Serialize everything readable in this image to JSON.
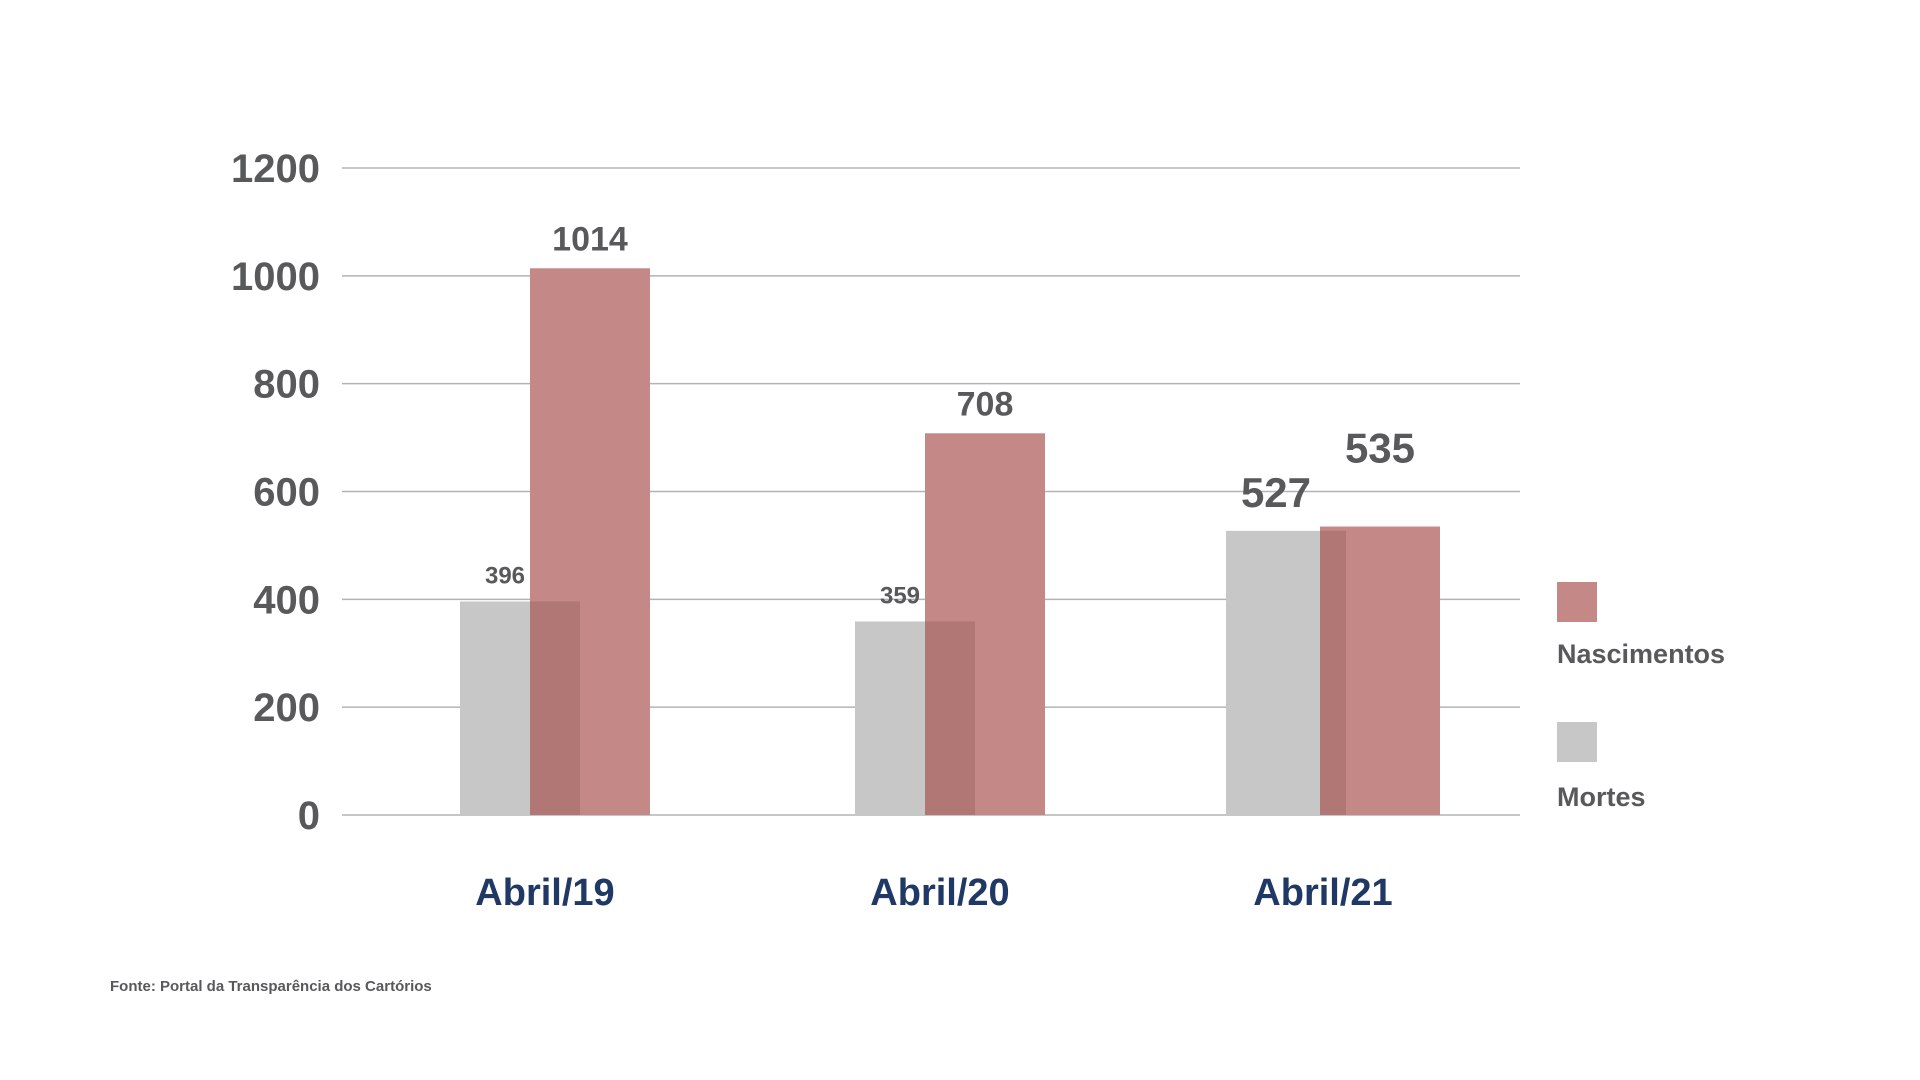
{
  "chart_data": {
    "type": "bar",
    "categories": [
      "Abril/19",
      "Abril/20",
      "Abril/21"
    ],
    "series": [
      {
        "name": "Mortes",
        "color": "#c7c7c7",
        "values": [
          396,
          359,
          527
        ],
        "labels": [
          "396",
          "359",
          "527"
        ]
      },
      {
        "name": "Nascimentos",
        "color": "#c48886",
        "values": [
          1014,
          708,
          535
        ],
        "labels": [
          "1014",
          "708",
          "535"
        ]
      }
    ],
    "overlap_color": "#b07775",
    "yticks": [
      "0",
      "200",
      "400",
      "600",
      "800",
      "1000",
      "1200"
    ],
    "ylim": [
      0,
      1200
    ],
    "grid": true,
    "legend_position": "right",
    "category_label_color": "#1f3864",
    "text_color": "#58595b"
  },
  "source_text": "Fonte: Portal da Transparência dos Cartórios"
}
